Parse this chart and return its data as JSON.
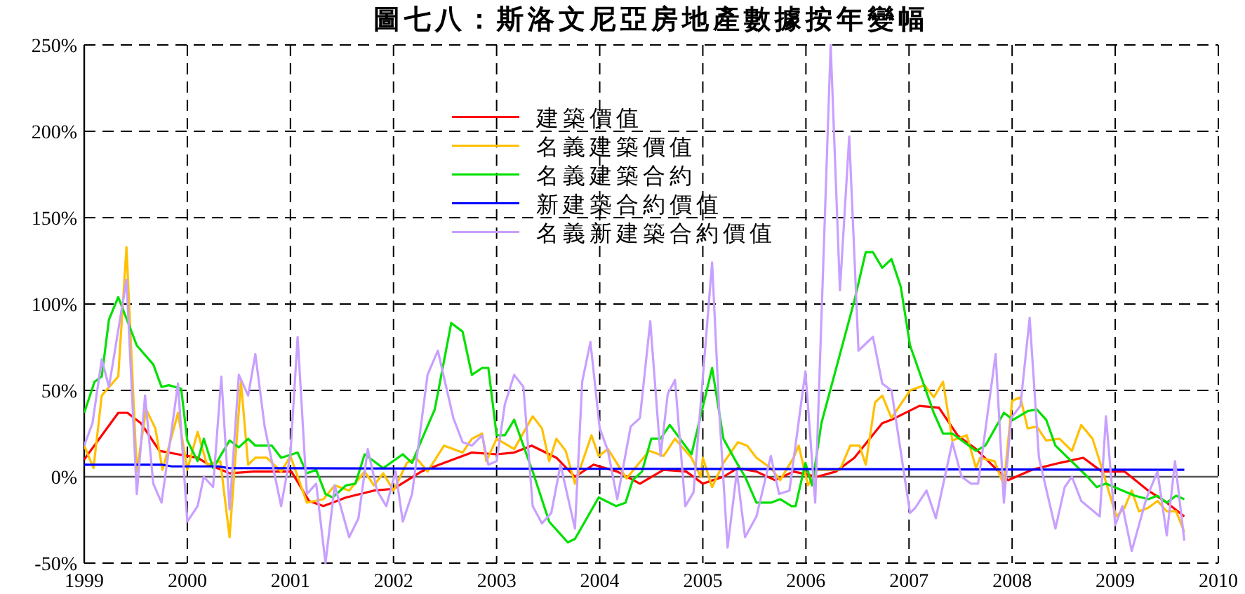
{
  "chart_data": {
    "type": "line",
    "title": "圖七八：斯洛文尼亞房地產數據按年變幅",
    "xlim": [
      1999,
      2010
    ],
    "xticks": [
      1999,
      2000,
      2001,
      2002,
      2003,
      2004,
      2005,
      2006,
      2007,
      2008,
      2009,
      2010
    ],
    "ylim": [
      -50,
      250
    ],
    "yticks": [
      {
        "value": -50,
        "label": "-50%"
      },
      {
        "value": 0,
        "label": "0%"
      },
      {
        "value": 50,
        "label": "50%"
      },
      {
        "value": 100,
        "label": "100%"
      },
      {
        "value": 150,
        "label": "150%"
      },
      {
        "value": 200,
        "label": "200%"
      },
      {
        "value": 250,
        "label": "250%"
      }
    ],
    "grid": true,
    "line_style": "solid",
    "marker": "none",
    "legend": "top",
    "ref_lines": [
      {
        "axis": "y",
        "value": 0,
        "color": "#555555"
      }
    ],
    "series": [
      {
        "name": "建築價值",
        "color": "#ff0000",
        "x": [
          1999.0,
          1999.33,
          1999.42,
          1999.55,
          1999.73,
          1999.91,
          2000.1,
          2000.21,
          2000.41,
          2000.64,
          2001.01,
          2001.18,
          2001.32,
          2001.54,
          2001.81,
          2002.0,
          2002.27,
          2002.49,
          2002.76,
          2003.0,
          2003.17,
          2003.34,
          2003.58,
          2003.76,
          2003.94,
          2004.17,
          2004.39,
          2004.62,
          2004.84,
          2005.0,
          2005.2,
          2005.34,
          2005.52,
          2005.7,
          2005.88,
          2006.11,
          2006.29,
          2006.47,
          2006.74,
          2006.83,
          2007.1,
          2007.29,
          2007.47,
          2007.65,
          2007.87,
          2007.96,
          2008.19,
          2008.46,
          2008.69,
          2008.87,
          2009.09,
          2009.32,
          2009.5,
          2009.67
        ],
        "values": [
          10,
          37,
          37,
          31,
          15,
          13,
          11,
          7,
          2,
          3,
          3,
          -14,
          -17,
          -12,
          -8,
          -7,
          3,
          8,
          14,
          13,
          14,
          18,
          11,
          0,
          7,
          3,
          -4,
          4,
          3,
          -4,
          0,
          5,
          3,
          -2,
          3,
          0,
          3,
          11,
          31,
          33,
          41,
          40,
          24,
          16,
          3,
          -2,
          4,
          8,
          11,
          3,
          3,
          -8,
          -15,
          -23
        ]
      },
      {
        "name": "名義建築價值",
        "color": "#ffc000",
        "x": [
          1999.0,
          1999.09,
          1999.17,
          1999.33,
          1999.41,
          1999.51,
          1999.6,
          1999.69,
          1999.76,
          1999.91,
          2000.0,
          2000.1,
          2000.19,
          2000.32,
          2000.41,
          2000.52,
          2000.59,
          2000.66,
          2000.77,
          2000.91,
          2001.0,
          2001.16,
          2001.32,
          2001.43,
          2001.57,
          2001.72,
          2001.81,
          2001.9,
          2002.0,
          2002.13,
          2002.22,
          2002.33,
          2002.49,
          2002.67,
          2002.76,
          2002.86,
          2002.9,
          2003.0,
          2003.17,
          2003.35,
          2003.44,
          2003.51,
          2003.58,
          2003.67,
          2003.76,
          2003.92,
          2003.99,
          2004.08,
          2004.26,
          2004.48,
          2004.62,
          2004.73,
          2004.89,
          2004.98,
          2005.0,
          2005.09,
          2005.2,
          2005.34,
          2005.43,
          2005.52,
          2005.66,
          2005.75,
          2005.88,
          2005.93,
          2006.02,
          2006.11,
          2006.33,
          2006.43,
          2006.52,
          2006.58,
          2006.67,
          2006.74,
          2006.83,
          2007.01,
          2007.15,
          2007.24,
          2007.33,
          2007.42,
          2007.56,
          2007.65,
          2007.69,
          2007.83,
          2007.92,
          2008.0,
          2008.08,
          2008.15,
          2008.24,
          2008.33,
          2008.46,
          2008.58,
          2008.67,
          2008.78,
          2008.87,
          2009.01,
          2009.09,
          2009.16,
          2009.23,
          2009.32,
          2009.41,
          2009.5,
          2009.59,
          2009.67
        ],
        "values": [
          18,
          5,
          47,
          58,
          133,
          3,
          39,
          28,
          4,
          37,
          4,
          26,
          7,
          9,
          -35,
          55,
          7,
          11,
          11,
          3,
          12,
          -15,
          -13,
          -5,
          -8,
          3,
          -5,
          2,
          -8,
          8,
          11,
          3,
          18,
          14,
          22,
          25,
          9,
          22,
          16,
          35,
          28,
          9,
          22,
          15,
          -4,
          24,
          12,
          16,
          -1,
          15,
          12,
          22,
          11,
          0,
          11,
          -6,
          8,
          20,
          18,
          11,
          5,
          -2,
          11,
          18,
          -5,
          4,
          4,
          18,
          18,
          7,
          43,
          47,
          34,
          50,
          53,
          46,
          55,
          21,
          24,
          5,
          11,
          9,
          -5,
          44,
          46,
          28,
          29,
          21,
          22,
          15,
          30,
          22,
          5,
          -23,
          -18,
          -8,
          -20,
          -18,
          -14,
          -20,
          -20,
          -32
        ]
      },
      {
        "name": "名義建築合約",
        "color": "#00e000",
        "x": [
          1999.0,
          1999.1,
          1999.17,
          1999.24,
          1999.33,
          1999.51,
          1999.67,
          1999.75,
          1999.82,
          1999.94,
          2000.0,
          2000.1,
          2000.16,
          2000.25,
          2000.41,
          2000.5,
          2000.59,
          2000.66,
          2000.82,
          2000.91,
          2001.07,
          2001.16,
          2001.25,
          2001.34,
          2001.41,
          2001.54,
          2001.63,
          2001.72,
          2001.9,
          2002.09,
          2002.18,
          2002.27,
          2002.4,
          2002.56,
          2002.67,
          2002.76,
          2002.86,
          2002.92,
          2003.0,
          2003.08,
          2003.17,
          2003.35,
          2003.51,
          2003.69,
          2003.76,
          2003.99,
          2004.16,
          2004.25,
          2004.32,
          2004.41,
          2004.5,
          2004.59,
          2004.68,
          2004.89,
          2005.09,
          2005.2,
          2005.32,
          2005.41,
          2005.52,
          2005.66,
          2005.75,
          2005.86,
          2005.9,
          2005.995,
          2006.06,
          2006.15,
          2006.47,
          2006.58,
          2006.65,
          2006.74,
          2006.83,
          2006.92,
          2007.01,
          2007.24,
          2007.33,
          2007.42,
          2007.65,
          2007.74,
          2007.92,
          2008.01,
          2008.15,
          2008.24,
          2008.33,
          2008.42,
          2008.73,
          2008.82,
          2008.91,
          2009.19,
          2009.32,
          2009.41,
          2009.5,
          2009.59,
          2009.67
        ],
        "values": [
          37,
          55,
          58,
          91,
          104,
          76,
          65,
          52,
          53,
          51,
          21,
          9,
          22,
          5,
          21,
          17,
          22,
          18,
          18,
          11,
          14,
          2,
          4,
          -10,
          -12,
          -5,
          -4,
          13,
          5,
          13,
          8,
          21,
          39,
          89,
          84,
          59,
          63,
          63,
          24,
          24,
          33,
          3,
          -26,
          -38,
          -36,
          -12,
          -17,
          -15,
          -2,
          3,
          22,
          22,
          30,
          13,
          63,
          22,
          9,
          0,
          -15,
          -15,
          -13,
          -17,
          -17,
          8,
          -5,
          31,
          102,
          130,
          130,
          121,
          126,
          110,
          76,
          37,
          25,
          25,
          15,
          18,
          37,
          33,
          38,
          39,
          33,
          18,
          0,
          -6,
          -4,
          -11,
          -13,
          -11,
          -15,
          -11,
          -13
        ]
      },
      {
        "name": "新建築合約價值",
        "color": "#0000ff",
        "x": [
          1999.0,
          1999.75,
          1999.85,
          2000.3,
          2000.4,
          2009.67
        ],
        "values": [
          7,
          7,
          6,
          6,
          5,
          4
        ]
      },
      {
        "name": "名義新建築合約價值",
        "color": "#c8a0ff",
        "x": [
          1999.0,
          1999.08,
          1999.17,
          1999.24,
          1999.41,
          1999.51,
          1999.59,
          1999.67,
          1999.75,
          1999.91,
          2000.0,
          2000.1,
          2000.16,
          2000.25,
          2000.33,
          2000.41,
          2000.5,
          2000.59,
          2000.66,
          2000.75,
          2000.91,
          2001.0,
          2001.07,
          2001.16,
          2001.25,
          2001.34,
          2001.43,
          2001.57,
          2001.66,
          2001.75,
          2001.84,
          2001.93,
          2002.02,
          2002.09,
          2002.18,
          2002.33,
          2002.43,
          2002.58,
          2002.67,
          2002.76,
          2002.86,
          2002.92,
          2003.0,
          2003.08,
          2003.17,
          2003.26,
          2003.35,
          2003.44,
          2003.53,
          2003.62,
          2003.76,
          2003.83,
          2003.91,
          2004.0,
          2004.08,
          2004.17,
          2004.3,
          2004.39,
          2004.49,
          2004.59,
          2004.66,
          2004.73,
          2004.83,
          2004.91,
          2005.09,
          2005.16,
          2005.24,
          2005.33,
          2005.41,
          2005.52,
          2005.66,
          2005.74,
          2005.84,
          2005.995,
          2006.09,
          2006.24,
          2006.33,
          2006.42,
          2006.51,
          2006.65,
          2006.74,
          2006.83,
          2007.01,
          2007.06,
          2007.17,
          2007.26,
          2007.42,
          2007.51,
          2007.6,
          2007.67,
          2007.84,
          2007.92,
          2007.99,
          2008.08,
          2008.17,
          2008.26,
          2008.42,
          2008.51,
          2008.58,
          2008.67,
          2008.85,
          2008.91,
          2009.0,
          2009.07,
          2009.16,
          2009.3,
          2009.41,
          2009.5,
          2009.58,
          2009.67
        ],
        "values": [
          18,
          31,
          68,
          52,
          114,
          -10,
          47,
          -4,
          -15,
          54,
          -26,
          -17,
          0,
          -6,
          58,
          -19,
          59,
          47,
          71,
          29,
          -17,
          13,
          81,
          -10,
          -4,
          -50,
          -5,
          -35,
          -24,
          16,
          -8,
          -17,
          3,
          -26,
          -10,
          59,
          73,
          34,
          20,
          18,
          24,
          7,
          9,
          42,
          59,
          52,
          -17,
          -27,
          -21,
          7,
          -30,
          55,
          78,
          28,
          15,
          -13,
          29,
          34,
          90,
          12,
          48,
          56,
          -17,
          -9,
          124,
          37,
          -41,
          3,
          -35,
          -23,
          12,
          -10,
          -8,
          61,
          -15,
          250,
          108,
          197,
          73,
          81,
          54,
          50,
          -21,
          -18,
          -8,
          -24,
          20,
          0,
          -4,
          -4,
          71,
          -15,
          34,
          41,
          92,
          11,
          -30,
          -6,
          0,
          -14,
          -23,
          35,
          -28,
          -17,
          -43,
          -13,
          3,
          -34,
          9,
          -37
        ]
      }
    ]
  }
}
